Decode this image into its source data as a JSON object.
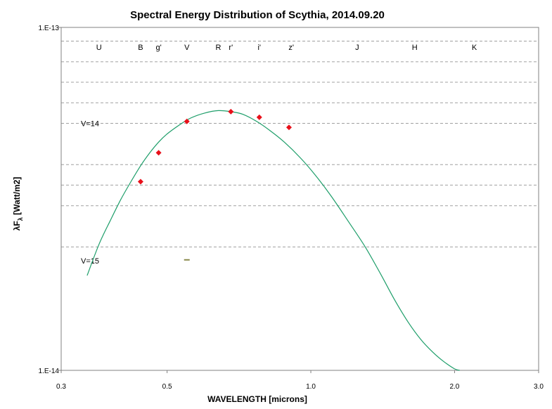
{
  "chart_data": {
    "type": "scatter",
    "title": "Spectral Energy Distribution of Scythia, 2014.09.20",
    "xlabel": "WAVELENGTH [microns]",
    "ylabel": "λF",
    "ylabel_sub": "λ",
    "ylabel_unit": " [Watt/m2]",
    "x_scale": "log",
    "y_scale": "log",
    "xlim": [
      0.3,
      3.0
    ],
    "ylim": [
      1e-14,
      1e-13
    ],
    "x_ticks": [
      {
        "value": 0.3,
        "label": "0.3"
      },
      {
        "value": 0.5,
        "label": "0.5"
      },
      {
        "value": 1.0,
        "label": "1.0"
      },
      {
        "value": 2.0,
        "label": "2.0"
      },
      {
        "value": 3.0,
        "label": "3.0"
      }
    ],
    "y_ticks": [
      {
        "value": 1e-13,
        "label": "1.E-13"
      },
      {
        "value": 1e-14,
        "label": "1.E-14"
      }
    ],
    "grid": true,
    "gridlines_y": [
      9.12e-14,
      7.94e-14,
      6.92e-14,
      6.03e-14,
      5.25e-14,
      3.98e-14,
      3.47e-14,
      3.02e-14,
      2.29e-14
    ],
    "magnitude_marks": [
      {
        "label": "V=14",
        "y": 5.25e-14
      },
      {
        "label": "V=15",
        "y": 2.09e-14
      }
    ],
    "bands": [
      {
        "label": "U",
        "x": 0.36
      },
      {
        "label": "B",
        "x": 0.44
      },
      {
        "label": "g'",
        "x": 0.48
      },
      {
        "label": "V",
        "x": 0.55
      },
      {
        "label": "R",
        "x": 0.64
      },
      {
        "label": "r'",
        "x": 0.68
      },
      {
        "label": "i'",
        "x": 0.78
      },
      {
        "label": "z'",
        "x": 0.91
      },
      {
        "label": "J",
        "x": 1.25
      },
      {
        "label": "H",
        "x": 1.65
      },
      {
        "label": "K",
        "x": 2.2
      }
    ],
    "points": {
      "color": "#e8101a",
      "x": [
        0.44,
        0.48,
        0.55,
        0.68,
        0.78,
        0.9
      ],
      "y": [
        3.55e-14,
        4.31e-14,
        5.32e-14,
        5.68e-14,
        5.47e-14,
        5.11e-14
      ]
    },
    "curve": {
      "color": "#1e9e6a",
      "x": [
        0.34,
        0.36,
        0.38,
        0.4,
        0.42,
        0.44,
        0.46,
        0.48,
        0.5,
        0.53,
        0.56,
        0.6,
        0.64,
        0.68,
        0.72,
        0.77,
        0.82,
        0.88,
        0.95,
        1.02,
        1.1,
        1.2,
        1.3,
        1.4,
        1.5,
        1.6,
        1.7,
        1.8,
        1.9,
        2.0,
        2.05
      ],
      "y": [
        1.89e-14,
        2.33e-14,
        2.73e-14,
        3.15e-14,
        3.55e-14,
        3.95e-14,
        4.31e-14,
        4.63e-14,
        4.89e-14,
        5.19e-14,
        5.44e-14,
        5.63e-14,
        5.72e-14,
        5.68e-14,
        5.58e-14,
        5.32e-14,
        5.01e-14,
        4.63e-14,
        4.17e-14,
        3.72e-14,
        3.24e-14,
        2.71e-14,
        2.29e-14,
        1.91e-14,
        1.6e-14,
        1.38e-14,
        1.23e-14,
        1.13e-14,
        1.06e-14,
        1.01e-14,
        1e-14
      ]
    },
    "stray_mark": {
      "x": 0.55,
      "y": 2.1e-14,
      "color": "#8a8a4a"
    }
  }
}
